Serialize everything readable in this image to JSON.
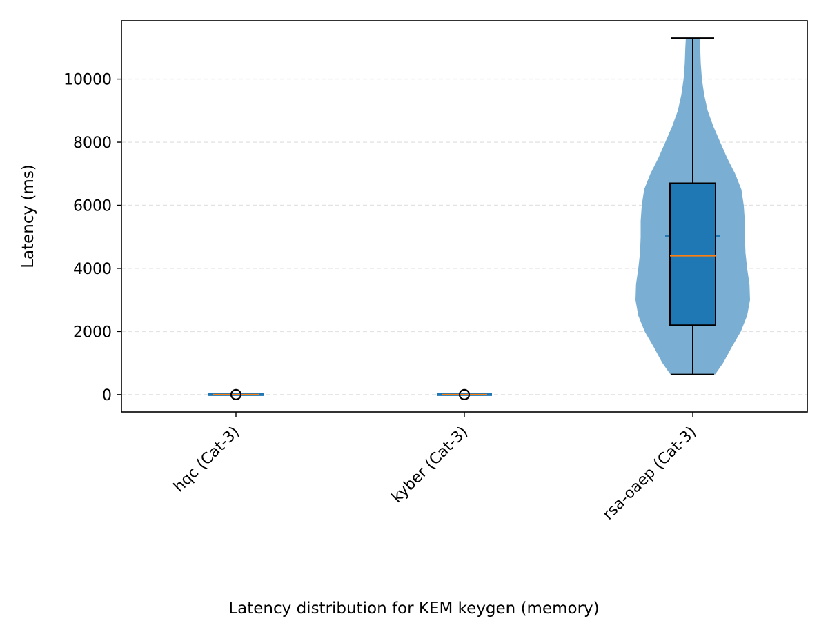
{
  "chart_data": {
    "type": "violin",
    "ylabel": "Latency (ms)",
    "caption": "Latency distribution for KEM keygen (memory)",
    "categories": [
      "hqc (Cat-3)",
      "kyber (Cat-3)",
      "rsa-oaep (Cat-3)"
    ],
    "ylim": [
      -550,
      11850
    ],
    "yticks": [
      0,
      2000,
      4000,
      6000,
      8000,
      10000
    ],
    "grid": "horizontal-dashed",
    "colors": {
      "violin": "#7aafd3",
      "box": "#1f77b4",
      "median": "#ff7f0e",
      "mean": "#1f77b4",
      "grid": "#e3e3e3"
    },
    "distributions": [
      {
        "label": "hqc (Cat-3)",
        "min": 0,
        "q1": 0,
        "median": 0,
        "mean": 0,
        "q3": 0,
        "max": 0,
        "outliers": [
          0
        ],
        "density": []
      },
      {
        "label": "kyber (Cat-3)",
        "min": 0,
        "q1": 0,
        "median": 0,
        "mean": 0,
        "q3": 0,
        "max": 0,
        "outliers": [
          0
        ],
        "density": []
      },
      {
        "label": "rsa-oaep (Cat-3)",
        "min": 640,
        "q1": 2200,
        "median": 4400,
        "mean": 5020,
        "q3": 6700,
        "max": 11300,
        "outliers": [],
        "density": [
          [
            640,
            0.39
          ],
          [
            1000,
            0.53
          ],
          [
            1500,
            0.68
          ],
          [
            2000,
            0.84
          ],
          [
            2500,
            0.95
          ],
          [
            3000,
            1.0
          ],
          [
            3500,
            0.99
          ],
          [
            4000,
            0.95
          ],
          [
            4500,
            0.92
          ],
          [
            5000,
            0.91
          ],
          [
            5500,
            0.91
          ],
          [
            6000,
            0.89
          ],
          [
            6500,
            0.85
          ],
          [
            7000,
            0.74
          ],
          [
            7500,
            0.6
          ],
          [
            8000,
            0.48
          ],
          [
            8500,
            0.36
          ],
          [
            9000,
            0.26
          ],
          [
            9500,
            0.2
          ],
          [
            10000,
            0.16
          ],
          [
            10500,
            0.14
          ],
          [
            11000,
            0.13
          ],
          [
            11300,
            0.12
          ]
        ]
      }
    ]
  }
}
